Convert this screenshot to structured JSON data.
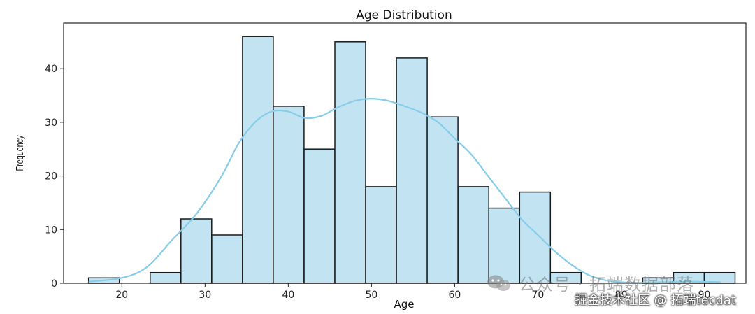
{
  "chart_data": {
    "type": "bar",
    "title": "Age Distribution",
    "xlabel": "Age",
    "ylabel": "Frequency",
    "xlim": [
      13,
      95
    ],
    "ylim": [
      0,
      48.5
    ],
    "xticks": [
      20,
      30,
      40,
      50,
      60,
      70,
      80,
      90
    ],
    "yticks": [
      0,
      10,
      20,
      30,
      40
    ],
    "bin_width": 3.7,
    "bins": [
      {
        "start": 16.0,
        "value": 1
      },
      {
        "start": 19.7,
        "value": 0
      },
      {
        "start": 23.4,
        "value": 2
      },
      {
        "start": 27.1,
        "value": 12
      },
      {
        "start": 30.8,
        "value": 9
      },
      {
        "start": 34.5,
        "value": 46
      },
      {
        "start": 38.2,
        "value": 33
      },
      {
        "start": 41.9,
        "value": 25
      },
      {
        "start": 45.6,
        "value": 45
      },
      {
        "start": 49.3,
        "value": 18
      },
      {
        "start": 53.0,
        "value": 42
      },
      {
        "start": 56.7,
        "value": 31
      },
      {
        "start": 60.4,
        "value": 18
      },
      {
        "start": 64.1,
        "value": 14
      },
      {
        "start": 67.8,
        "value": 17
      },
      {
        "start": 71.5,
        "value": 2
      },
      {
        "start": 75.2,
        "value": 0
      },
      {
        "start": 78.9,
        "value": 0
      },
      {
        "start": 82.6,
        "value": 1
      },
      {
        "start": 86.3,
        "value": 2
      },
      {
        "start": 90.0,
        "value": 2
      }
    ],
    "kde": [
      [
        16,
        0.3
      ],
      [
        20,
        1
      ],
      [
        23,
        3
      ],
      [
        26,
        8
      ],
      [
        29,
        13
      ],
      [
        32,
        20
      ],
      [
        34,
        26
      ],
      [
        36,
        30
      ],
      [
        38,
        32
      ],
      [
        40,
        32
      ],
      [
        42,
        30.8
      ],
      [
        44,
        31.2
      ],
      [
        46,
        32.8
      ],
      [
        48,
        34
      ],
      [
        50,
        34.4
      ],
      [
        52,
        34
      ],
      [
        54,
        33
      ],
      [
        56,
        31.8
      ],
      [
        58,
        30
      ],
      [
        60,
        27
      ],
      [
        62,
        24
      ],
      [
        64,
        20
      ],
      [
        66,
        16
      ],
      [
        68,
        12
      ],
      [
        70,
        9
      ],
      [
        72,
        6
      ],
      [
        74,
        3.5
      ],
      [
        76,
        1.6
      ],
      [
        78,
        0.6
      ],
      [
        80,
        0.2
      ],
      [
        82,
        0.1
      ],
      [
        85,
        0.2
      ],
      [
        88,
        0.3
      ],
      [
        92,
        0.2
      ]
    ],
    "colors": {
      "bar_fill": "#c2e4f2",
      "bar_edge": "#1a1a1a",
      "kde": "#87cde8"
    },
    "grid": false
  },
  "watermark": {
    "line1": "公众号 · 拓端数据部落",
    "line2": "掘金技术社区 @ 拓端tecdat",
    "icon": "wechat-icon"
  }
}
